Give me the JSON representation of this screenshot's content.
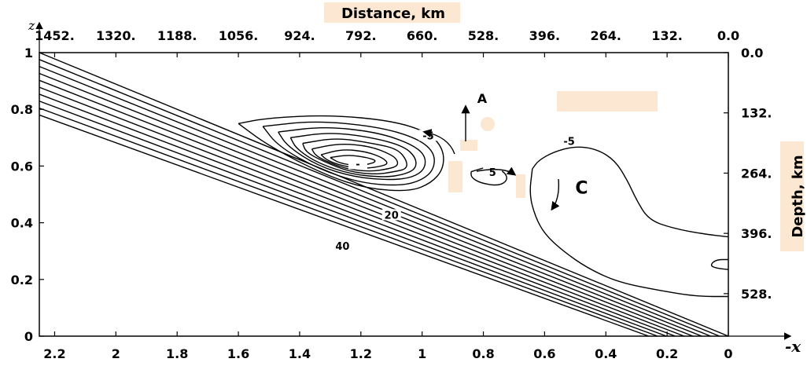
{
  "chart_data": {
    "type": "contour",
    "bottom_axis": {
      "label": "-x",
      "range": [
        2.25,
        0
      ],
      "ticks": [
        "2.2",
        "2",
        "1.8",
        "1.6",
        "1.4",
        "1.2",
        "1",
        "0.8",
        "0.6",
        "0.4",
        "0.2",
        "0"
      ]
    },
    "left_axis": {
      "label": "z",
      "range": [
        0,
        1
      ],
      "ticks": [
        "0",
        "0.2",
        "0.4",
        "0.6",
        "0.8",
        "1"
      ]
    },
    "top_axis": {
      "label": "Distance, km",
      "ticks": [
        "1452.",
        "1320.",
        "1188.",
        "1056.",
        "924.",
        "792.",
        "660.",
        "528.",
        "396.",
        "264.",
        "132.",
        "0.0"
      ]
    },
    "right_axis": {
      "label": "Depth, km",
      "ticks": [
        "0.0",
        "132.",
        "264.",
        "396.",
        "528."
      ]
    },
    "contour_labels": [
      {
        "text": "-5",
        "x": 0.98,
        "z": 0.7
      },
      {
        "text": "-",
        "x": 1.21,
        "z": 0.6
      },
      {
        "text": "5",
        "x": 0.77,
        "z": 0.57
      },
      {
        "text": "-5",
        "x": 0.52,
        "z": 0.68
      },
      {
        "text": "20",
        "x": 1.1,
        "z": 0.42
      },
      {
        "text": "40",
        "x": 1.26,
        "z": 0.31
      }
    ],
    "annotations": [
      {
        "text": "A",
        "x": 0.82,
        "z": 0.84
      },
      {
        "text": "C",
        "x": 0.5,
        "z": 0.52
      }
    ],
    "slab_lines": {
      "count": 10,
      "top_line": [
        [
          2.25,
          1.0
        ],
        [
          0,
          0
        ]
      ],
      "bottom_line": [
        [
          2.25,
          0.78
        ],
        [
          0.26,
          0.0
        ]
      ]
    },
    "contours": [
      {
        "name": "negative-cell-outer",
        "points": [
          [
            1.6,
            0.75
          ],
          [
            1.5,
            0.77
          ],
          [
            1.3,
            0.78
          ],
          [
            1.1,
            0.76
          ],
          [
            0.98,
            0.72
          ],
          [
            0.93,
            0.66
          ],
          [
            0.93,
            0.59
          ],
          [
            0.97,
            0.54
          ],
          [
            1.04,
            0.51
          ],
          [
            1.18,
            0.52
          ],
          [
            1.32,
            0.57
          ],
          [
            1.5,
            0.67
          ],
          [
            1.6,
            0.75
          ]
        ]
      },
      {
        "name": "negative-cell-2",
        "points": [
          [
            1.52,
            0.74
          ],
          [
            1.35,
            0.76
          ],
          [
            1.15,
            0.74
          ],
          [
            1.02,
            0.7
          ],
          [
            0.96,
            0.65
          ],
          [
            0.96,
            0.59
          ],
          [
            1.0,
            0.55
          ],
          [
            1.07,
            0.53
          ],
          [
            1.2,
            0.54
          ],
          [
            1.34,
            0.59
          ],
          [
            1.47,
            0.67
          ],
          [
            1.52,
            0.74
          ]
        ]
      },
      {
        "name": "negative-cell-3",
        "points": [
          [
            1.47,
            0.72
          ],
          [
            1.32,
            0.74
          ],
          [
            1.15,
            0.72
          ],
          [
            1.04,
            0.68
          ],
          [
            0.99,
            0.64
          ],
          [
            0.99,
            0.59
          ],
          [
            1.03,
            0.56
          ],
          [
            1.1,
            0.55
          ],
          [
            1.22,
            0.56
          ],
          [
            1.34,
            0.6
          ],
          [
            1.44,
            0.67
          ],
          [
            1.47,
            0.72
          ]
        ]
      },
      {
        "name": "negative-cell-4",
        "points": [
          [
            1.43,
            0.7
          ],
          [
            1.3,
            0.72
          ],
          [
            1.16,
            0.7
          ],
          [
            1.06,
            0.67
          ],
          [
            1.02,
            0.63
          ],
          [
            1.02,
            0.59
          ],
          [
            1.06,
            0.57
          ],
          [
            1.12,
            0.56
          ],
          [
            1.23,
            0.57
          ],
          [
            1.34,
            0.61
          ],
          [
            1.41,
            0.66
          ],
          [
            1.43,
            0.7
          ]
        ]
      },
      {
        "name": "negative-cell-5",
        "points": [
          [
            1.39,
            0.68
          ],
          [
            1.28,
            0.7
          ],
          [
            1.16,
            0.68
          ],
          [
            1.08,
            0.66
          ],
          [
            1.05,
            0.62
          ],
          [
            1.05,
            0.59
          ],
          [
            1.09,
            0.58
          ],
          [
            1.15,
            0.57
          ],
          [
            1.24,
            0.58
          ],
          [
            1.33,
            0.62
          ],
          [
            1.38,
            0.65
          ],
          [
            1.39,
            0.68
          ]
        ]
      },
      {
        "name": "negative-cell-6",
        "points": [
          [
            1.36,
            0.66
          ],
          [
            1.27,
            0.68
          ],
          [
            1.17,
            0.67
          ],
          [
            1.1,
            0.64
          ],
          [
            1.08,
            0.62
          ],
          [
            1.08,
            0.6
          ],
          [
            1.11,
            0.59
          ],
          [
            1.17,
            0.58
          ],
          [
            1.25,
            0.59
          ],
          [
            1.32,
            0.62
          ],
          [
            1.35,
            0.64
          ],
          [
            1.36,
            0.66
          ]
        ]
      },
      {
        "name": "negative-cell-7",
        "points": [
          [
            1.33,
            0.64
          ],
          [
            1.26,
            0.66
          ],
          [
            1.18,
            0.65
          ],
          [
            1.13,
            0.63
          ],
          [
            1.11,
            0.61
          ],
          [
            1.13,
            0.6
          ],
          [
            1.19,
            0.59
          ],
          [
            1.26,
            0.6
          ],
          [
            1.31,
            0.62
          ],
          [
            1.33,
            0.64
          ]
        ]
      },
      {
        "name": "negative-cell-8",
        "points": [
          [
            1.3,
            0.63
          ],
          [
            1.24,
            0.64
          ],
          [
            1.18,
            0.63
          ],
          [
            1.15,
            0.62
          ],
          [
            1.16,
            0.61
          ],
          [
            1.21,
            0.6
          ],
          [
            1.27,
            0.61
          ],
          [
            1.3,
            0.63
          ]
        ]
      },
      {
        "name": "positive-cell",
        "points": [
          [
            0.84,
            0.58
          ],
          [
            0.78,
            0.6
          ],
          [
            0.73,
            0.58
          ],
          [
            0.72,
            0.55
          ],
          [
            0.75,
            0.53
          ],
          [
            0.81,
            0.54
          ],
          [
            0.84,
            0.56
          ],
          [
            0.84,
            0.58
          ]
        ]
      },
      {
        "name": "negative-region-right",
        "points": [
          [
            0.64,
            0.59
          ],
          [
            0.62,
            0.62
          ],
          [
            0.57,
            0.65
          ],
          [
            0.5,
            0.67
          ],
          [
            0.43,
            0.66
          ],
          [
            0.37,
            0.62
          ],
          [
            0.33,
            0.55
          ],
          [
            0.3,
            0.48
          ],
          [
            0.26,
            0.41
          ],
          [
            0.18,
            0.38
          ],
          [
            0.08,
            0.36
          ],
          [
            0,
            0.35
          ]
        ]
      },
      {
        "name": "negative-region-right-lower",
        "points": [
          [
            0.64,
            0.59
          ],
          [
            0.65,
            0.5
          ],
          [
            0.63,
            0.42
          ],
          [
            0.6,
            0.36
          ],
          [
            0.54,
            0.3
          ],
          [
            0.46,
            0.24
          ],
          [
            0.36,
            0.19
          ],
          [
            0.22,
            0.16
          ],
          [
            0.1,
            0.14
          ],
          [
            0,
            0.14
          ]
        ]
      },
      {
        "name": "small-right-cell",
        "points": [
          [
            0.0,
            0.27
          ],
          [
            0.04,
            0.27
          ],
          [
            0.06,
            0.25
          ],
          [
            0.04,
            0.24
          ],
          [
            0.0,
            0.235
          ]
        ]
      }
    ]
  }
}
